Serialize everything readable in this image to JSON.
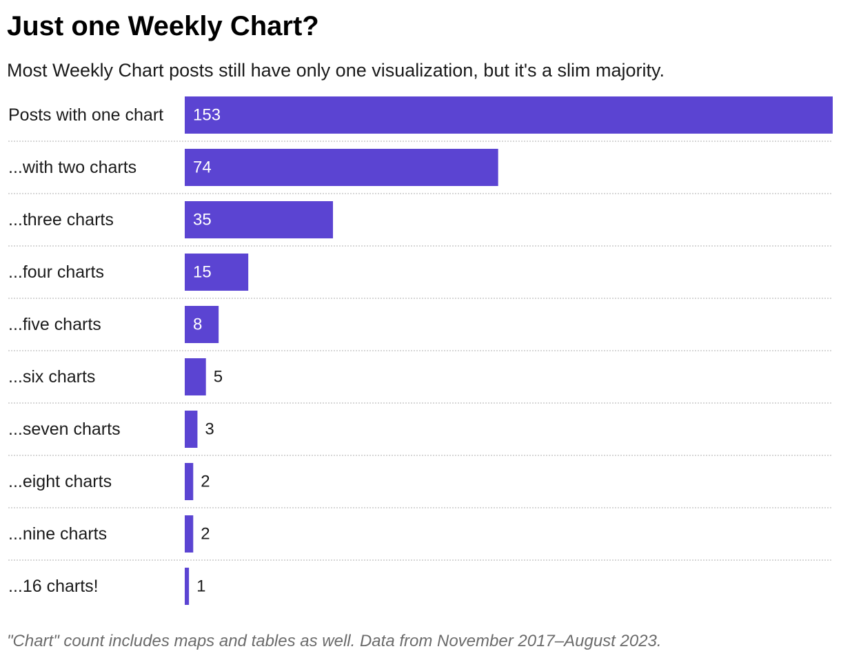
{
  "colors": {
    "bar": "#5b44d2",
    "label_inside": "#ffffff",
    "label_outside": "#1a1a1a",
    "separator": "#c8c8c8"
  },
  "chart_data": {
    "type": "bar",
    "orientation": "horizontal",
    "title": "Just one Weekly Chart?",
    "subtitle": "Most Weekly Chart posts still have only one visualization, but it's a slim majority.",
    "categories": [
      "Posts with one chart",
      "...with two charts",
      "...three charts",
      "...four charts",
      "...five charts",
      "...six charts",
      "...seven charts",
      "...eight charts",
      "...nine charts",
      "...16 charts!"
    ],
    "values": [
      153,
      74,
      35,
      15,
      8,
      5,
      3,
      2,
      2,
      1
    ],
    "xlim": [
      0,
      153
    ],
    "xlabel": "",
    "ylabel": "",
    "grid": false,
    "legend": "none",
    "note": "\"Chart\" count includes maps and tables as well. Data from November 2017–August 2023."
  }
}
